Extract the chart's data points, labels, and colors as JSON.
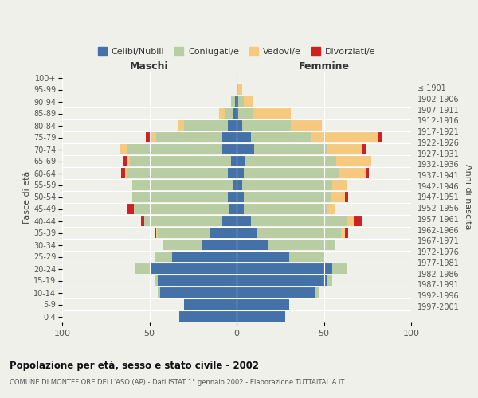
{
  "age_groups": [
    "0-4",
    "5-9",
    "10-14",
    "15-19",
    "20-24",
    "25-29",
    "30-34",
    "35-39",
    "40-44",
    "45-49",
    "50-54",
    "55-59",
    "60-64",
    "65-69",
    "70-74",
    "75-79",
    "80-84",
    "85-89",
    "90-94",
    "95-99",
    "100+"
  ],
  "birth_years": [
    "1997-2001",
    "1992-1996",
    "1987-1991",
    "1982-1986",
    "1977-1981",
    "1972-1976",
    "1967-1971",
    "1962-1966",
    "1957-1961",
    "1952-1956",
    "1947-1951",
    "1942-1946",
    "1937-1941",
    "1932-1936",
    "1927-1931",
    "1922-1926",
    "1917-1921",
    "1912-1916",
    "1907-1911",
    "1902-1906",
    "≤ 1901"
  ],
  "male": {
    "celibi": [
      33,
      30,
      44,
      45,
      50,
      37,
      20,
      15,
      8,
      4,
      5,
      2,
      5,
      3,
      8,
      8,
      5,
      2,
      1,
      0,
      0
    ],
    "coniugati": [
      0,
      0,
      1,
      2,
      8,
      10,
      22,
      30,
      45,
      55,
      55,
      58,
      58,
      58,
      55,
      38,
      25,
      5,
      2,
      0,
      0
    ],
    "vedovi": [
      0,
      0,
      0,
      0,
      0,
      0,
      0,
      1,
      0,
      0,
      0,
      0,
      1,
      2,
      4,
      4,
      4,
      3,
      0,
      0,
      0
    ],
    "divorziati": [
      0,
      0,
      0,
      0,
      0,
      0,
      0,
      1,
      2,
      4,
      0,
      0,
      2,
      2,
      0,
      2,
      0,
      0,
      0,
      0,
      0
    ]
  },
  "female": {
    "nubili": [
      28,
      30,
      45,
      52,
      55,
      30,
      18,
      12,
      8,
      4,
      4,
      3,
      4,
      5,
      10,
      8,
      3,
      1,
      1,
      0,
      0
    ],
    "coniugate": [
      0,
      0,
      2,
      3,
      8,
      20,
      38,
      48,
      55,
      48,
      50,
      52,
      55,
      52,
      42,
      35,
      28,
      8,
      3,
      1,
      0
    ],
    "vedove": [
      0,
      0,
      0,
      0,
      0,
      0,
      0,
      2,
      4,
      4,
      8,
      8,
      15,
      20,
      20,
      38,
      18,
      22,
      5,
      2,
      0
    ],
    "divorziate": [
      0,
      0,
      0,
      0,
      0,
      0,
      0,
      2,
      5,
      0,
      2,
      0,
      2,
      0,
      2,
      2,
      0,
      0,
      0,
      0,
      0
    ]
  },
  "color_celibi": "#4472a8",
  "color_coniugati": "#b8cda1",
  "color_vedovi": "#f5c97e",
  "color_divorziati": "#cc2222",
  "xlim": 100,
  "title_main": "Popolazione per età, sesso e stato civile - 2002",
  "title_sub": "COMUNE DI MONTEFIORE DELL'ASO (AP) - Dati ISTAT 1° gennaio 2002 - Elaborazione TUTTAITALIA.IT",
  "legend_labels": [
    "Celibi/Nubili",
    "Coniugati/e",
    "Vedovi/e",
    "Divorziati/e"
  ],
  "label_maschi": "Maschi",
  "label_femmine": "Femmine",
  "ylabel_left": "Fasce di età",
  "ylabel_right": "Anni di nascita",
  "bg_color": "#f0f0eb",
  "bar_height": 0.85
}
